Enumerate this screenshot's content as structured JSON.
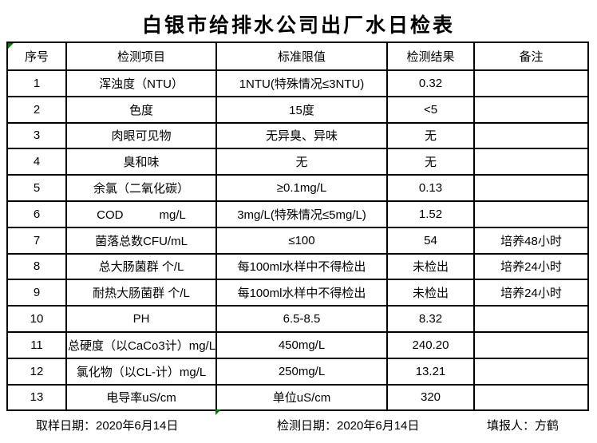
{
  "title": "白银市给排水公司出厂水日检表",
  "table": {
    "headers": [
      "序号",
      "检测项目",
      "标准限值",
      "检测结果",
      "备注"
    ],
    "rows": [
      {
        "no": "1",
        "item": "浑浊度（NTU）",
        "limit": "1NTU(特殊情况≤3NTU)",
        "result": "0.32",
        "note": ""
      },
      {
        "no": "2",
        "item": "色度",
        "limit": "15度",
        "result": "<5",
        "note": ""
      },
      {
        "no": "3",
        "item": "肉眼可见物",
        "limit": "无异臭、异味",
        "result": "无",
        "note": ""
      },
      {
        "no": "4",
        "item": "臭和味",
        "limit": "无",
        "result": "无",
        "note": ""
      },
      {
        "no": "5",
        "item": "余氯（二氧化碳）",
        "limit": "≥0.1mg/L",
        "result": "0.13",
        "note": ""
      },
      {
        "no": "6",
        "item": "COD　　　mg/L",
        "limit": "3mg/L(特殊情况≤5mg/L)",
        "result": "1.52",
        "note": ""
      },
      {
        "no": "7",
        "item": "菌落总数CFU/mL",
        "limit": "≤100",
        "result": "54",
        "note": "培养48小时"
      },
      {
        "no": "8",
        "item": "总大肠菌群 个/L",
        "limit": "每100ml水样中不得检出",
        "result": "未检出",
        "note": "培养24小时"
      },
      {
        "no": "9",
        "item": "耐热大肠菌群 个/L",
        "limit": "每100ml水样中不得检出",
        "result": "未检出",
        "note": "培养24小时"
      },
      {
        "no": "10",
        "item": "PH",
        "limit": "6.5-8.5",
        "result": "8.32",
        "note": ""
      },
      {
        "no": "11",
        "item": "总硬度（以CaCo3计）mg/L",
        "limit": "450mg/L",
        "result": "240.20",
        "note": ""
      },
      {
        "no": "12",
        "item": "氯化物（以CL-计）mg/L",
        "limit": "250mg/L",
        "result": "13.21",
        "note": ""
      },
      {
        "no": "13",
        "item": "电导率uS/cm",
        "limit": "单位uS/cm",
        "result": "320",
        "note": ""
      }
    ]
  },
  "footer": {
    "sampling_date": "取样日期：2020年6月14日",
    "test_date": "检测日期：2020年6月14日",
    "reporter": "填报人：方鹤"
  },
  "colors": {
    "marker_green": "#007a00",
    "border_black": "#000000",
    "background": "#ffffff"
  }
}
